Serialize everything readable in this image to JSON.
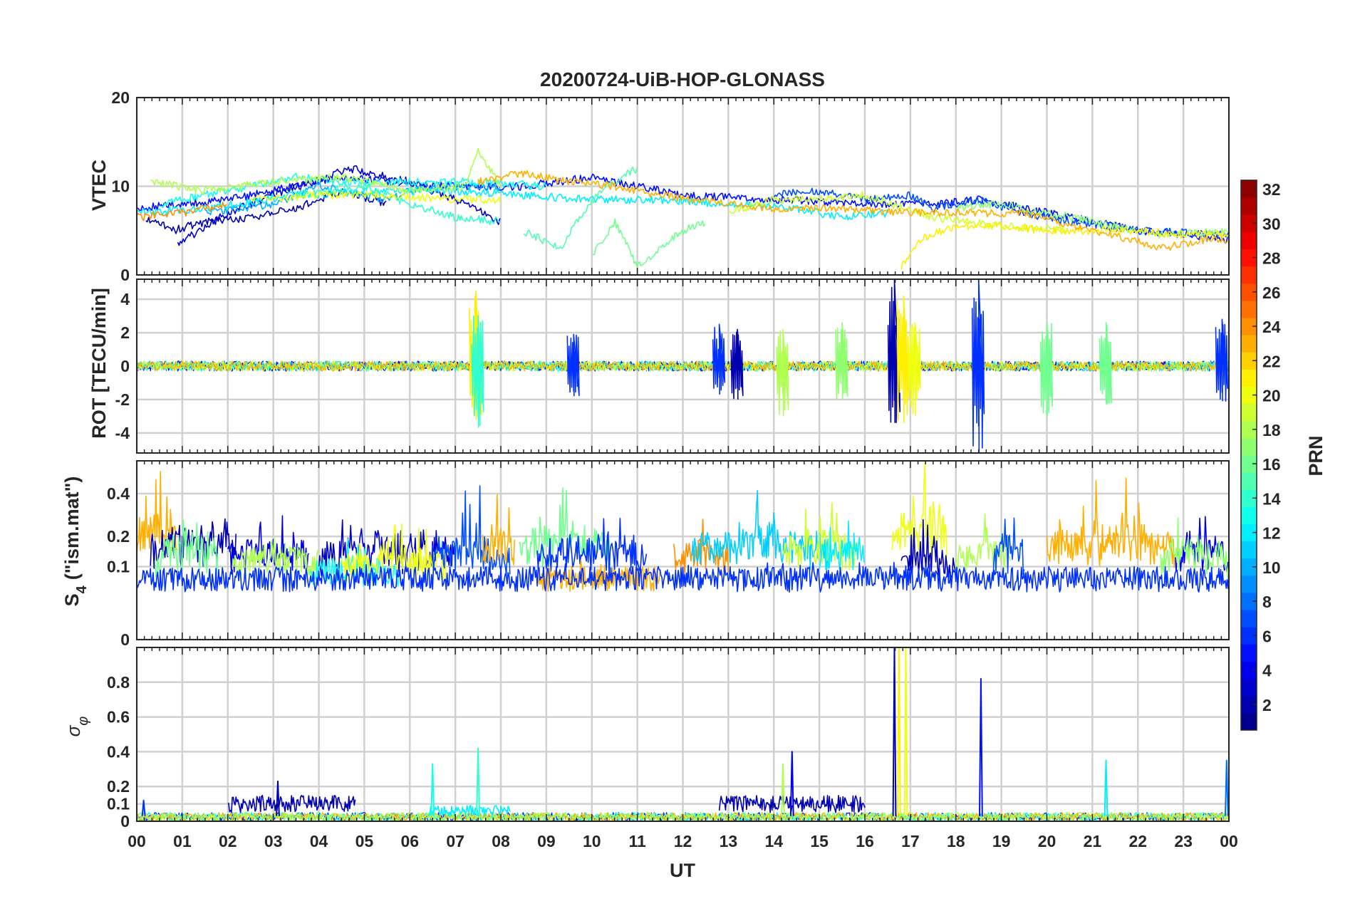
{
  "colors": {
    "axis": "#262626",
    "grid": "#d0d0d0",
    "background": "#ffffff",
    "colormap": "jet"
  },
  "chart_data": [
    {
      "type": "line",
      "panel": "vtec",
      "title": "20200724-UiB-HOP-GLONASS",
      "ylabel": "VTEC",
      "xlabel": "",
      "xlim": [
        0,
        24
      ],
      "ylim": [
        0,
        20
      ],
      "yticks": [
        0,
        10,
        20
      ],
      "ytick_labels": [
        "0",
        "10",
        "20"
      ],
      "grid": true,
      "series": [
        {
          "prn": 2,
          "x": [
            0.2,
            0.8,
            1.5,
            2.5,
            3.5,
            4.5,
            5.5
          ],
          "y": [
            6.5,
            5,
            6,
            6.5,
            7.5,
            9.5,
            8
          ]
        },
        {
          "prn": 3,
          "x": [
            0.9,
            2,
            3,
            4.7,
            6,
            7,
            8
          ],
          "y": [
            3.5,
            7,
            9,
            12,
            10.5,
            8.5,
            6
          ]
        },
        {
          "prn": 5,
          "x": [
            0,
            2,
            4.5,
            6.5,
            8.5,
            10,
            12,
            14,
            16.5,
            17.5,
            18.5,
            19.5,
            20,
            21,
            22,
            23,
            24
          ],
          "y": [
            7.5,
            8.5,
            11,
            10,
            10,
            11,
            9,
            8.5,
            8,
            8,
            8.5,
            7.5,
            7,
            6,
            5,
            4.5,
            4
          ]
        },
        {
          "prn": 7,
          "x": [
            14,
            15,
            16,
            17,
            17.5,
            18.5,
            19.5,
            20.5,
            22,
            24
          ],
          "y": [
            9,
            9.5,
            8.5,
            9,
            7.5,
            8.5,
            7,
            6,
            5,
            4.5
          ]
        },
        {
          "prn": 10,
          "x": [
            1.5,
            3,
            4,
            5.5,
            6,
            7,
            8
          ],
          "y": [
            7,
            8,
            10,
            8.5,
            9.5,
            10,
            10
          ]
        },
        {
          "prn": 12,
          "x": [
            0,
            1.5,
            3.5,
            5.5,
            7,
            8.5,
            10,
            11.5,
            13,
            14.5,
            15.5,
            16.5
          ],
          "y": [
            7,
            7.5,
            9,
            9.5,
            9.5,
            9,
            8.5,
            8.5,
            8,
            7.5,
            6.5,
            7
          ]
        },
        {
          "prn": 13,
          "x": [
            0.5,
            2,
            3.5,
            4.5,
            6,
            7.5,
            9
          ],
          "y": [
            8,
            9.5,
            11,
            10.5,
            10.5,
            10.5,
            10
          ]
        },
        {
          "prn": 14,
          "x": [
            3.5,
            5,
            6,
            7,
            8
          ],
          "y": [
            9,
            10,
            8,
            6.5,
            6
          ]
        },
        {
          "prn": 15,
          "x": [
            8.5,
            9.3,
            9.8,
            10.3,
            11
          ],
          "y": [
            5,
            3,
            7,
            10,
            12
          ]
        },
        {
          "prn": 16,
          "x": [
            10,
            10.5,
            11,
            11.5,
            12,
            12.5
          ],
          "y": [
            2,
            6,
            1,
            3,
            5,
            6
          ]
        },
        {
          "prn": 17,
          "x": [
            18,
            19,
            20,
            20.5,
            21.5,
            22.5,
            24
          ],
          "y": [
            7.5,
            8,
            7,
            6.5,
            5.5,
            4.5,
            5
          ]
        },
        {
          "prn": 18,
          "x": [
            0.3,
            1.5,
            3,
            4.5,
            6,
            7.2,
            7.5,
            8
          ],
          "y": [
            10.5,
            9.5,
            10.5,
            11,
            9.5,
            10,
            14,
            10
          ]
        },
        {
          "prn": 19,
          "x": [
            13,
            14,
            15,
            16,
            17.5,
            19,
            20.5
          ],
          "y": [
            7,
            8.5,
            8.5,
            9,
            6.5,
            5.5,
            5
          ]
        },
        {
          "prn": 20,
          "x": [
            2.5,
            4,
            5.5,
            7,
            8
          ],
          "y": [
            8.5,
            9,
            9,
            8.5,
            8.5
          ]
        },
        {
          "prn": 21,
          "x": [
            16.8,
            17.2,
            18,
            19,
            20,
            21,
            22,
            23,
            24
          ],
          "y": [
            1,
            4,
            5.5,
            5.5,
            5,
            5,
            5,
            4.5,
            4.5
          ]
        },
        {
          "prn": 23,
          "x": [
            7.5,
            8.5,
            9.5,
            10.5,
            11.5,
            13,
            14,
            15.5,
            17,
            18.5,
            19.5,
            20.5,
            21.5,
            22.5,
            23.5,
            24
          ],
          "y": [
            10.5,
            11.5,
            10.5,
            10,
            9,
            8,
            7.5,
            7.5,
            7,
            7,
            7,
            5.5,
            4.5,
            3,
            4,
            4
          ]
        },
        {
          "prn": 24,
          "x": [
            0,
            1,
            2
          ],
          "y": [
            6.5,
            7,
            8
          ]
        }
      ]
    },
    {
      "type": "line",
      "panel": "rot",
      "ylabel": "ROT [TECU/min]",
      "xlabel": "",
      "xlim": [
        0,
        24
      ],
      "ylim": [
        -5.2,
        5.2
      ],
      "yticks": [
        -4,
        -2,
        0,
        2,
        4
      ],
      "ytick_labels": [
        "-4",
        "-2",
        "0",
        "2",
        "4"
      ],
      "grid": true,
      "baseline": 0,
      "bursts": [
        {
          "x": 7.45,
          "min": -3.2,
          "max": 4.5,
          "prn": 21
        },
        {
          "x": 7.5,
          "min": -3.7,
          "max": 3.0,
          "prn": 14
        },
        {
          "x": 9.6,
          "min": -1.8,
          "max": 1.9,
          "prn": 6
        },
        {
          "x": 12.8,
          "min": -1.7,
          "max": 2.5,
          "prn": 6
        },
        {
          "x": 13.2,
          "min": -2.0,
          "max": 2.2,
          "prn": 2
        },
        {
          "x": 14.2,
          "min": -3.0,
          "max": 2.2,
          "prn": 18
        },
        {
          "x": 15.5,
          "min": -2.0,
          "max": 2.6,
          "prn": 17
        },
        {
          "x": 16.65,
          "min": -3.4,
          "max": 5.2,
          "prn": 2
        },
        {
          "x": 16.85,
          "min": -3.4,
          "max": 4.2,
          "prn": 21
        },
        {
          "x": 17.1,
          "min": -3.0,
          "max": 2.6,
          "prn": 20
        },
        {
          "x": 18.5,
          "min": -5.2,
          "max": 5.2,
          "prn": 6
        },
        {
          "x": 20.0,
          "min": -3.0,
          "max": 2.6,
          "prn": 16
        },
        {
          "x": 21.3,
          "min": -2.3,
          "max": 2.6,
          "prn": 16
        },
        {
          "x": 23.85,
          "min": -2.1,
          "max": 2.8,
          "prn": 6
        }
      ]
    },
    {
      "type": "line",
      "panel": "s4",
      "ylabel": "S4 (\"ism.mat\")",
      "xlabel": "",
      "xlim": [
        0,
        24
      ],
      "ylim": [
        0,
        0.6
      ],
      "scale": "sqrt",
      "yticks": [
        0,
        0.1,
        0.2,
        0.4
      ],
      "ytick_labels": [
        "0",
        "0.1",
        "0.2",
        "0.4"
      ],
      "grid": true,
      "segments": [
        {
          "prn": 23,
          "x0": 0,
          "x1": 0.9,
          "base": 0.18,
          "amp": 0.35
        },
        {
          "prn": 2,
          "x0": 0.3,
          "x1": 2.2,
          "base": 0.15,
          "amp": 0.3
        },
        {
          "prn": 16,
          "x0": 0.4,
          "x1": 1.8,
          "base": 0.12,
          "amp": 0.22
        },
        {
          "prn": 4,
          "x0": 2.0,
          "x1": 3.8,
          "base": 0.13,
          "amp": 0.15
        },
        {
          "prn": 18,
          "x0": 2.1,
          "x1": 4.0,
          "base": 0.11,
          "amp": 0.12
        },
        {
          "prn": 3,
          "x0": 4.0,
          "x1": 7.0,
          "base": 0.12,
          "amp": 0.25
        },
        {
          "prn": 13,
          "x0": 3.8,
          "x1": 5.8,
          "base": 0.08,
          "amp": 0.1
        },
        {
          "prn": 20,
          "x0": 4.5,
          "x1": 6.8,
          "base": 0.1,
          "amp": 0.15
        },
        {
          "prn": 7,
          "x0": 6.5,
          "x1": 8.2,
          "base": 0.12,
          "amp": 0.3
        },
        {
          "prn": 23,
          "x0": 7.6,
          "x1": 8.3,
          "base": 0.15,
          "amp": 0.25
        },
        {
          "prn": 16,
          "x0": 8.4,
          "x1": 10.4,
          "base": 0.15,
          "amp": 0.3
        },
        {
          "prn": 6,
          "x0": 8.8,
          "x1": 11.2,
          "base": 0.12,
          "amp": 0.2
        },
        {
          "prn": 23,
          "x0": 8.8,
          "x1": 11.5,
          "base": 0.07,
          "amp": 0.03
        },
        {
          "prn": 24,
          "x0": 11.8,
          "x1": 13.0,
          "base": 0.13,
          "amp": 0.12
        },
        {
          "prn": 11,
          "x0": 12.2,
          "x1": 15.2,
          "base": 0.15,
          "amp": 0.3
        },
        {
          "prn": 19,
          "x0": 14.2,
          "x1": 15.8,
          "base": 0.14,
          "amp": 0.2
        },
        {
          "prn": 12,
          "x0": 15.0,
          "x1": 16.0,
          "base": 0.12,
          "amp": 0.2
        },
        {
          "prn": 20,
          "x0": 16.6,
          "x1": 17.8,
          "base": 0.2,
          "amp": 0.3
        },
        {
          "prn": 2,
          "x0": 16.8,
          "x1": 18.0,
          "base": 0.1,
          "amp": 0.15
        },
        {
          "prn": 18,
          "x0": 18.0,
          "x1": 19.2,
          "base": 0.12,
          "amp": 0.2
        },
        {
          "prn": 7,
          "x0": 18.8,
          "x1": 19.5,
          "base": 0.12,
          "amp": 0.25
        },
        {
          "prn": 23,
          "x0": 20.0,
          "x1": 22.8,
          "base": 0.15,
          "amp": 0.3
        },
        {
          "prn": 4,
          "x0": 22.8,
          "x1": 24.0,
          "base": 0.13,
          "amp": 0.15
        },
        {
          "prn": 17,
          "x0": 22.5,
          "x1": 24.0,
          "base": 0.12,
          "amp": 0.18
        },
        {
          "prn": 6,
          "x0": 0,
          "x1": 24.0,
          "base": 0.07,
          "amp": 0.02
        }
      ]
    },
    {
      "type": "line",
      "panel": "sigma-phi",
      "ylabel": "σφ",
      "xlabel": "UT",
      "xlim": [
        0,
        24
      ],
      "ylim": [
        0,
        1.0
      ],
      "yticks": [
        0,
        0.1,
        0.2,
        0.4,
        0.6,
        0.8
      ],
      "ytick_labels": [
        "0",
        "0.1",
        "0.2",
        "0.4",
        "0.6",
        "0.8"
      ],
      "grid": true,
      "baseline": 0.02,
      "segments": [
        {
          "prn": 2,
          "x0": 2.0,
          "x1": 4.8,
          "level": 0.1
        },
        {
          "prn": 2,
          "x0": 12.8,
          "x1": 16.0,
          "level": 0.1
        },
        {
          "prn": 12,
          "x0": 6.4,
          "x1": 8.2,
          "level": 0.06
        }
      ],
      "spikes": [
        {
          "x": 0.15,
          "y": 0.12,
          "prn": 6
        },
        {
          "x": 3.1,
          "y": 0.23,
          "prn": 2
        },
        {
          "x": 6.5,
          "y": 0.33,
          "prn": 13
        },
        {
          "x": 7.5,
          "y": 0.42,
          "prn": 14
        },
        {
          "x": 14.2,
          "y": 0.33,
          "prn": 18
        },
        {
          "x": 14.4,
          "y": 0.4,
          "prn": 4
        },
        {
          "x": 16.65,
          "y": 1.0,
          "prn": 2
        },
        {
          "x": 16.75,
          "y": 1.0,
          "prn": 21
        },
        {
          "x": 16.9,
          "y": 1.0,
          "prn": 20
        },
        {
          "x": 18.55,
          "y": 0.82,
          "prn": 5
        },
        {
          "x": 21.3,
          "y": 0.35,
          "prn": 12
        },
        {
          "x": 23.95,
          "y": 0.35,
          "prn": 8
        }
      ]
    }
  ],
  "x_axis": {
    "label": "UT",
    "ticks": [
      0,
      1,
      2,
      3,
      4,
      5,
      6,
      7,
      8,
      9,
      10,
      11,
      12,
      13,
      14,
      15,
      16,
      17,
      18,
      19,
      20,
      21,
      22,
      23,
      24
    ],
    "tick_labels": [
      "00",
      "01",
      "02",
      "03",
      "04",
      "05",
      "06",
      "07",
      "08",
      "09",
      "10",
      "11",
      "12",
      "13",
      "14",
      "15",
      "16",
      "17",
      "18",
      "19",
      "20",
      "21",
      "22",
      "23",
      "00"
    ]
  },
  "colorbar": {
    "label": "PRN",
    "range": [
      1,
      32
    ],
    "colormap": "jet",
    "ticks": [
      2,
      4,
      6,
      8,
      10,
      12,
      14,
      16,
      18,
      20,
      22,
      24,
      26,
      28,
      30,
      32
    ],
    "tick_labels": [
      "2",
      "4",
      "6",
      "8",
      "10",
      "12",
      "14",
      "16",
      "18",
      "20",
      "22",
      "24",
      "26",
      "28",
      "30",
      "32"
    ]
  }
}
